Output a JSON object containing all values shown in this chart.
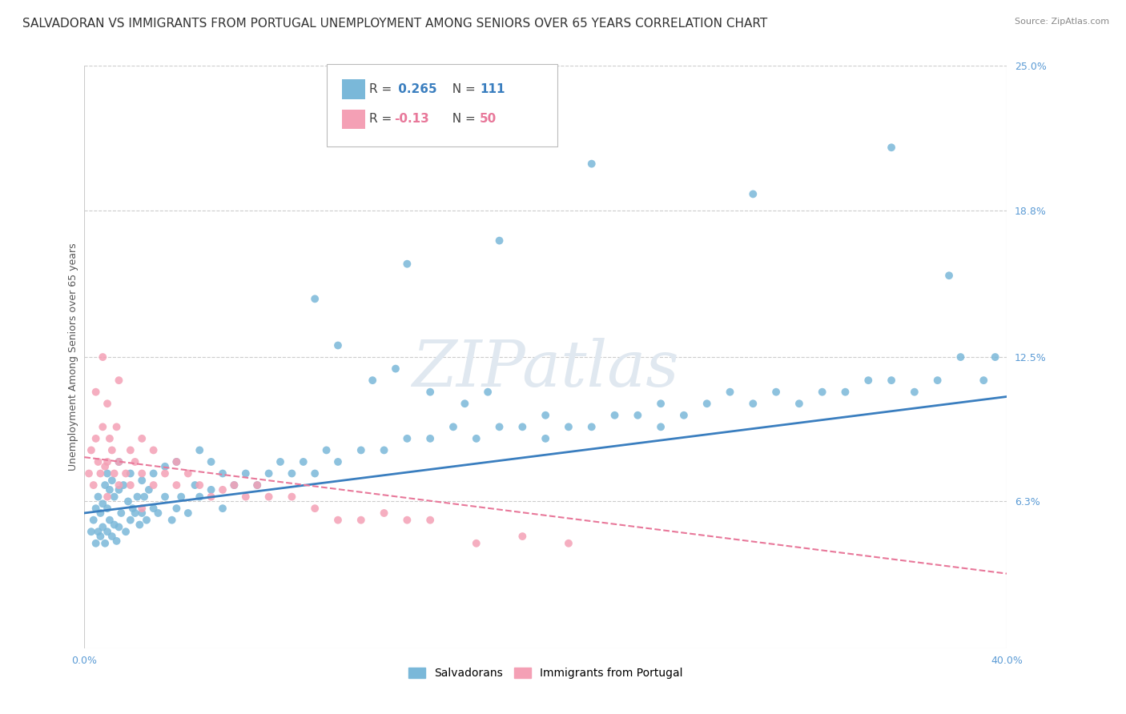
{
  "title": "SALVADORAN VS IMMIGRANTS FROM PORTUGAL UNEMPLOYMENT AMONG SENIORS OVER 65 YEARS CORRELATION CHART",
  "source": "Source: ZipAtlas.com",
  "ylabel": "Unemployment Among Seniors over 65 years",
  "xlim": [
    0.0,
    40.0
  ],
  "ylim": [
    0.0,
    25.0
  ],
  "yticks": [
    0.0,
    6.3,
    12.5,
    18.8,
    25.0
  ],
  "ytick_labels": [
    "",
    "6.3%",
    "12.5%",
    "18.8%",
    "25.0%"
  ],
  "xticks": [
    0.0,
    40.0
  ],
  "xtick_labels": [
    "0.0%",
    "40.0%"
  ],
  "blue_color": "#7ab8d9",
  "pink_color": "#f4a0b5",
  "blue_line_color": "#3a7ebf",
  "pink_line_color": "#e8789a",
  "blue_R": 0.265,
  "blue_N": 111,
  "pink_R": -0.13,
  "pink_N": 50,
  "watermark": "ZIPatlas",
  "legend_labels": [
    "Salvadorans",
    "Immigrants from Portugal"
  ],
  "grid_color": "#cccccc",
  "background_color": "#ffffff",
  "title_fontsize": 11,
  "axis_label_fontsize": 9,
  "tick_fontsize": 9,
  "tick_color": "#5b9bd5",
  "blue_trend_y0": 5.8,
  "blue_trend_y1": 10.8,
  "pink_trend_y0": 8.2,
  "pink_trend_y1": 3.2,
  "blue_scatter_x": [
    0.3,
    0.4,
    0.5,
    0.5,
    0.6,
    0.6,
    0.7,
    0.7,
    0.8,
    0.8,
    0.9,
    0.9,
    1.0,
    1.0,
    1.0,
    1.1,
    1.1,
    1.2,
    1.2,
    1.3,
    1.3,
    1.4,
    1.5,
    1.5,
    1.5,
    1.6,
    1.7,
    1.8,
    1.9,
    2.0,
    2.0,
    2.1,
    2.2,
    2.3,
    2.4,
    2.5,
    2.5,
    2.6,
    2.7,
    2.8,
    3.0,
    3.0,
    3.2,
    3.5,
    3.5,
    3.8,
    4.0,
    4.0,
    4.2,
    4.5,
    4.8,
    5.0,
    5.0,
    5.5,
    5.5,
    6.0,
    6.0,
    6.5,
    7.0,
    7.5,
    8.0,
    8.5,
    9.0,
    9.5,
    10.0,
    10.5,
    11.0,
    12.0,
    13.0,
    14.0,
    15.0,
    16.0,
    17.0,
    18.0,
    19.0,
    20.0,
    21.0,
    22.0,
    23.0,
    24.0,
    25.0,
    26.0,
    27.0,
    28.0,
    29.0,
    30.0,
    31.0,
    32.0,
    33.0,
    34.0,
    35.0,
    36.0,
    37.0,
    38.0,
    39.0,
    14.0,
    18.0,
    22.0,
    29.0,
    35.0,
    37.5,
    39.5,
    10.0,
    11.0,
    12.5,
    13.5,
    15.0,
    16.5,
    17.5,
    20.0,
    25.0
  ],
  "blue_scatter_y": [
    5.0,
    5.5,
    4.5,
    6.0,
    5.0,
    6.5,
    4.8,
    5.8,
    5.2,
    6.2,
    4.5,
    7.0,
    5.0,
    6.0,
    7.5,
    5.5,
    6.8,
    4.8,
    7.2,
    5.3,
    6.5,
    4.6,
    5.2,
    6.8,
    8.0,
    5.8,
    7.0,
    5.0,
    6.3,
    5.5,
    7.5,
    6.0,
    5.8,
    6.5,
    5.3,
    5.8,
    7.2,
    6.5,
    5.5,
    6.8,
    6.0,
    7.5,
    5.8,
    6.5,
    7.8,
    5.5,
    6.0,
    8.0,
    6.5,
    5.8,
    7.0,
    6.5,
    8.5,
    6.8,
    8.0,
    6.0,
    7.5,
    7.0,
    7.5,
    7.0,
    7.5,
    8.0,
    7.5,
    8.0,
    7.5,
    8.5,
    8.0,
    8.5,
    8.5,
    9.0,
    9.0,
    9.5,
    9.0,
    9.5,
    9.5,
    9.0,
    9.5,
    9.5,
    10.0,
    10.0,
    10.5,
    10.0,
    10.5,
    11.0,
    10.5,
    11.0,
    10.5,
    11.0,
    11.0,
    11.5,
    11.5,
    11.0,
    11.5,
    12.5,
    11.5,
    16.5,
    17.5,
    20.8,
    19.5,
    21.5,
    16.0,
    12.5,
    15.0,
    13.0,
    11.5,
    12.0,
    11.0,
    10.5,
    11.0,
    10.0,
    9.5
  ],
  "pink_scatter_x": [
    0.2,
    0.3,
    0.4,
    0.5,
    0.5,
    0.6,
    0.7,
    0.8,
    0.8,
    0.9,
    1.0,
    1.0,
    1.0,
    1.1,
    1.2,
    1.3,
    1.4,
    1.5,
    1.5,
    1.8,
    2.0,
    2.0,
    2.2,
    2.5,
    2.5,
    3.0,
    3.0,
    3.5,
    4.0,
    4.0,
    4.5,
    5.0,
    5.5,
    6.0,
    6.5,
    7.0,
    7.5,
    8.0,
    9.0,
    10.0,
    11.0,
    12.0,
    13.0,
    14.0,
    15.0,
    17.0,
    19.0,
    21.0,
    1.5,
    2.5
  ],
  "pink_scatter_y": [
    7.5,
    8.5,
    7.0,
    9.0,
    11.0,
    8.0,
    7.5,
    9.5,
    12.5,
    7.8,
    8.0,
    10.5,
    6.5,
    9.0,
    8.5,
    7.5,
    9.5,
    8.0,
    11.5,
    7.5,
    8.5,
    7.0,
    8.0,
    7.5,
    9.0,
    7.0,
    8.5,
    7.5,
    7.0,
    8.0,
    7.5,
    7.0,
    6.5,
    6.8,
    7.0,
    6.5,
    7.0,
    6.5,
    6.5,
    6.0,
    5.5,
    5.5,
    5.8,
    5.5,
    5.5,
    4.5,
    4.8,
    4.5,
    7.0,
    6.0
  ]
}
